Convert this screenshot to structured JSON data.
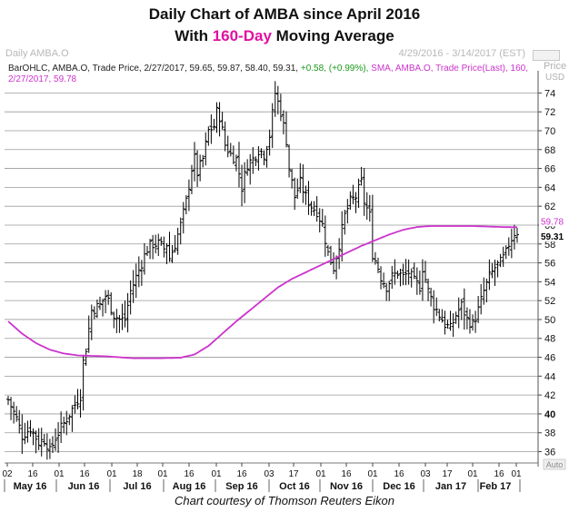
{
  "title": {
    "line1": "Daily Chart of AMBA since April 2016",
    "line2_pre": "With ",
    "line2_hl": "160-Day",
    "line2_post": " Moving Average"
  },
  "header": {
    "left_label": "Daily AMBA.O",
    "right_label": "4/29/2016 - 3/14/2017 (EST)"
  },
  "legend": {
    "series_label": "BarOHLC, AMBA.O, Trade Price, 2/27/2017, 59.65, 59.87, 58.40, 59.31,",
    "change": "+0.58, (+0.99%),",
    "sma_label": "SMA, AMBA.O, Trade Price(Last), 160,",
    "sma_line2": "2/27/2017, 59.78"
  },
  "caption": "Chart courtesy of Thomson Reuters Eikon",
  "chart_data": {
    "type": "ohlc",
    "title": "Daily Chart of AMBA since April 2016",
    "ylabel": "Price",
    "ylabel_unit": "USD",
    "ylim": [
      34.8,
      75
    ],
    "y_ticks": [
      36,
      38,
      40,
      42,
      44,
      46,
      48,
      50,
      52,
      54,
      56,
      58,
      60,
      62,
      64,
      66,
      68,
      70,
      72,
      74
    ],
    "y_bold_tick": 40,
    "last_price_label": "59.31",
    "sma_value_label": "59.78",
    "x_ticks": [
      "02",
      "16",
      "01",
      "16",
      "01",
      "18",
      "01",
      "16",
      "01",
      "16",
      "03",
      "17",
      "01",
      "16",
      "01",
      "16",
      "01",
      "16",
      "03",
      "17",
      "01",
      "16",
      "01"
    ],
    "x_months": [
      "May 16",
      "Jun 16",
      "Jul 16",
      "Aug 16",
      "Sep 16",
      "Oct 16",
      "Nov 16",
      "Dec 16",
      "Jan 17",
      "Feb 17"
    ],
    "auto_label": "Auto",
    "price_key": [
      [
        0,
        41.5
      ],
      [
        3,
        39.5
      ],
      [
        5,
        37.7
      ],
      [
        8,
        38.5
      ],
      [
        11,
        37.0
      ],
      [
        13,
        37.3
      ],
      [
        14,
        36.8
      ],
      [
        15,
        36.0
      ],
      [
        17,
        37.5
      ],
      [
        19,
        38.5
      ],
      [
        21,
        39.5
      ],
      [
        23,
        40.5
      ],
      [
        26,
        42.0
      ],
      [
        27,
        45.5
      ],
      [
        28,
        47.0
      ],
      [
        30,
        51.0
      ],
      [
        33,
        51.5
      ],
      [
        35,
        52.5
      ],
      [
        36,
        52.0
      ],
      [
        38,
        50.5
      ],
      [
        40,
        50.0
      ],
      [
        42,
        50.0
      ],
      [
        44,
        53.0
      ],
      [
        46,
        54.5
      ],
      [
        48,
        56.0
      ],
      [
        50,
        57.5
      ],
      [
        52,
        58.0
      ],
      [
        54,
        58.0
      ],
      [
        56,
        57.5
      ],
      [
        57,
        58.0
      ],
      [
        58,
        56.5
      ],
      [
        60,
        58.0
      ],
      [
        62,
        60.0
      ],
      [
        64,
        62.5
      ],
      [
        66,
        66.0
      ],
      [
        67,
        67.0
      ],
      [
        68,
        65.5
      ],
      [
        70,
        67.0
      ],
      [
        72,
        70.0
      ],
      [
        74,
        70.5
      ],
      [
        75,
        72.0
      ],
      [
        76,
        71.5
      ],
      [
        78,
        68.5
      ],
      [
        80,
        67.5
      ],
      [
        82,
        67.0
      ],
      [
        84,
        64.0
      ],
      [
        86,
        66.5
      ],
      [
        88,
        67.0
      ],
      [
        90,
        68.0
      ],
      [
        92,
        67.5
      ],
      [
        94,
        69.5
      ],
      [
        96,
        74.0
      ],
      [
        98,
        72.0
      ],
      [
        100,
        69.0
      ],
      [
        101,
        66.0
      ],
      [
        103,
        63.0
      ],
      [
        105,
        64.5
      ],
      [
        107,
        63.0
      ],
      [
        109,
        62.0
      ],
      [
        111,
        61.5
      ],
      [
        113,
        60.0
      ],
      [
        115,
        57.0
      ],
      [
        117,
        55.5
      ],
      [
        119,
        58.0
      ],
      [
        121,
        61.0
      ],
      [
        123,
        62.5
      ],
      [
        125,
        63.0
      ],
      [
        127,
        64.5
      ],
      [
        128,
        62.5
      ],
      [
        130,
        61.0
      ],
      [
        131,
        57.0
      ],
      [
        133,
        55.5
      ],
      [
        134,
        54.5
      ],
      [
        136,
        53.5
      ],
      [
        138,
        54.5
      ],
      [
        140,
        55.0
      ],
      [
        142,
        54.5
      ],
      [
        144,
        55.0
      ],
      [
        146,
        54.0
      ],
      [
        148,
        53.5
      ],
      [
        149,
        55.5
      ],
      [
        151,
        53.0
      ],
      [
        153,
        51.5
      ],
      [
        155,
        50.5
      ],
      [
        157,
        49.5
      ],
      [
        159,
        49.0
      ],
      [
        161,
        50.5
      ],
      [
        163,
        51.5
      ],
      [
        165,
        50.0
      ],
      [
        167,
        49.5
      ],
      [
        169,
        51.0
      ],
      [
        171,
        53.0
      ],
      [
        173,
        54.5
      ],
      [
        175,
        55.5
      ],
      [
        177,
        56.0
      ],
      [
        179,
        57.0
      ],
      [
        180,
        58.0
      ],
      [
        182,
        59.2
      ],
      [
        183,
        59.31
      ]
    ],
    "sma_key": [
      [
        0,
        49.8
      ],
      [
        5,
        48.5
      ],
      [
        10,
        47.5
      ],
      [
        15,
        46.8
      ],
      [
        20,
        46.4
      ],
      [
        25,
        46.2
      ],
      [
        35,
        46.1
      ],
      [
        45,
        45.9
      ],
      [
        55,
        45.9
      ],
      [
        62,
        45.95
      ],
      [
        67,
        46.3
      ],
      [
        72,
        47.2
      ],
      [
        77,
        48.5
      ],
      [
        82,
        49.8
      ],
      [
        87,
        51.0
      ],
      [
        92,
        52.2
      ],
      [
        97,
        53.4
      ],
      [
        102,
        54.3
      ],
      [
        107,
        55.0
      ],
      [
        112,
        55.7
      ],
      [
        117,
        56.4
      ],
      [
        122,
        57.1
      ],
      [
        127,
        57.8
      ],
      [
        132,
        58.4
      ],
      [
        137,
        59.0
      ],
      [
        142,
        59.5
      ],
      [
        147,
        59.8
      ],
      [
        152,
        59.9
      ],
      [
        157,
        59.9
      ],
      [
        162,
        59.9
      ],
      [
        167,
        59.9
      ],
      [
        172,
        59.85
      ],
      [
        177,
        59.8
      ],
      [
        181,
        59.78
      ],
      [
        183,
        59.78
      ]
    ]
  },
  "colors": {
    "sma": "#cc33cc",
    "title_highlight": "#e0119f",
    "bars": "#000000",
    "change_up": "#1a9a1a"
  }
}
